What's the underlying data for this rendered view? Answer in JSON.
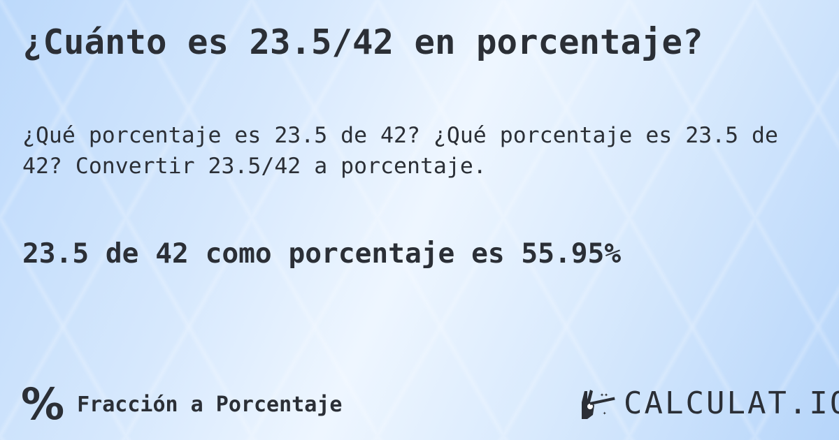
{
  "title": "¿Cuánto es 23.5/42 en porcentaje?",
  "description": "¿Qué porcentaje es 23.5 de 42? ¿Qué porcentaje es 23.5 de 42? Convertir 23.5/42 a porcentaje.",
  "result": "23.5 de 42 como porcentaje es 55.95%",
  "footer": {
    "icon": "percent-icon",
    "icon_glyph": "%",
    "category": "Fracción a Porcentaje"
  },
  "logo": {
    "text": "CALCULAT.IO",
    "icon": "magic-hand-wand-icon"
  },
  "colors": {
    "text": "#2b2f36",
    "background": "#d6e8fd"
  }
}
